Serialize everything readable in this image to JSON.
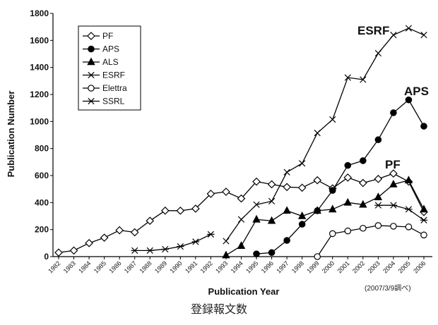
{
  "chart_data": {
    "type": "line",
    "xlabel": "Publication Year",
    "ylabel": "Publication Number",
    "ylim": [
      0,
      1800
    ],
    "yticks": [
      "0",
      "200",
      "400",
      "600",
      "800",
      "1000",
      "1200",
      "1400",
      "1600",
      "1800"
    ],
    "grid": false,
    "legend_position": "top-left",
    "categories": [
      "1982",
      "1983",
      "1984",
      "1985",
      "1986",
      "1987",
      "1988",
      "1989",
      "1990",
      "1991",
      "1992",
      "1993",
      "1994",
      "1995",
      "1996",
      "1997",
      "1998",
      "1999",
      "2000",
      "2001",
      "2002",
      "2003",
      "2004",
      "2005",
      "2006"
    ],
    "series": [
      {
        "name": "PF",
        "marker": "diamond-open",
        "values": [
          30,
          45,
          100,
          140,
          195,
          180,
          265,
          340,
          340,
          355,
          465,
          480,
          430,
          555,
          535,
          515,
          510,
          565,
          505,
          585,
          545,
          575,
          615,
          555,
          330
        ]
      },
      {
        "name": "APS",
        "marker": "circle-filled",
        "values": [
          null,
          null,
          null,
          null,
          null,
          null,
          null,
          null,
          null,
          null,
          null,
          null,
          null,
          20,
          30,
          120,
          240,
          340,
          490,
          675,
          710,
          865,
          1065,
          1160,
          965
        ]
      },
      {
        "name": "ALS",
        "marker": "triangle-filled",
        "values": [
          null,
          null,
          null,
          null,
          null,
          null,
          null,
          null,
          null,
          null,
          null,
          10,
          80,
          275,
          265,
          340,
          300,
          340,
          350,
          400,
          385,
          440,
          535,
          565,
          350
        ]
      },
      {
        "name": "ESRF",
        "marker": "x",
        "values": [
          null,
          null,
          null,
          null,
          null,
          null,
          null,
          null,
          null,
          null,
          null,
          115,
          275,
          385,
          410,
          625,
          690,
          915,
          1015,
          1325,
          1310,
          1505,
          1640,
          1690,
          1640
        ]
      },
      {
        "name": "Elettra",
        "marker": "circle-open",
        "values": [
          null,
          null,
          null,
          null,
          null,
          null,
          null,
          null,
          null,
          null,
          null,
          null,
          null,
          null,
          null,
          null,
          null,
          0,
          170,
          190,
          210,
          230,
          225,
          220,
          160
        ]
      },
      {
        "name": "SSRL",
        "marker": "asterisk",
        "values": [
          null,
          null,
          null,
          null,
          null,
          45,
          45,
          55,
          75,
          110,
          165,
          null,
          null,
          null,
          null,
          null,
          null,
          null,
          null,
          null,
          null,
          380,
          380,
          350,
          270
        ]
      }
    ],
    "annotations": [
      {
        "text": "ESRF",
        "series": "ESRF"
      },
      {
        "text": "APS",
        "series": "APS"
      },
      {
        "text": "PF",
        "series": "PF"
      }
    ],
    "line_color": "#000000"
  },
  "note": "(2007/3/9調べ)",
  "caption": "登録報文数"
}
